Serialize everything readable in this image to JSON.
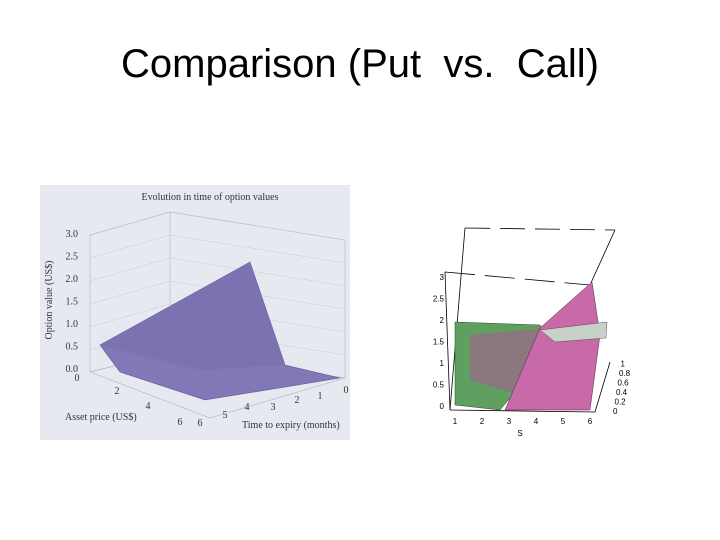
{
  "title": "Comparison (Put  vs.  Call)",
  "left_figure": {
    "title": "Evolution in time of option values",
    "z_label": "Option value (US$)",
    "x_label": "Asset price (US$)",
    "y_label": "Time to expiry (months)",
    "z_ticks": [
      "0.0",
      "0.5",
      "1.0",
      "1.5",
      "2.0",
      "2.5",
      "3.0"
    ],
    "x_ticks": [
      "0",
      "2",
      "4",
      "6"
    ],
    "y_ticks": [
      "6",
      "5",
      "4",
      "3",
      "2",
      "1",
      "0"
    ]
  },
  "right_figure": {
    "x_label": "S",
    "x_ticks": [
      "1",
      "2",
      "3",
      "4",
      "5",
      "6"
    ],
    "z_ticks": [
      "0",
      "0.5",
      "1",
      "1.5",
      "2",
      "2.5",
      "3"
    ],
    "t_ticks": [
      "0",
      "0.2",
      "0.4",
      "0.6",
      "0.8",
      "1"
    ]
  }
}
